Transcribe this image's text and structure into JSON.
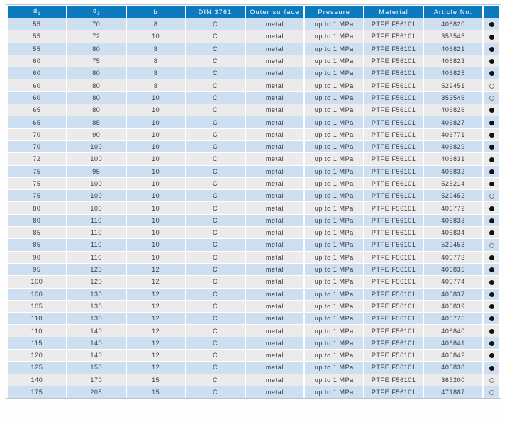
{
  "colors": {
    "header_bg": "#0c7abf",
    "header_text": "#ffffff",
    "row_blue": "#cddff0",
    "row_gray": "#ebebeb",
    "cell_text": "#3d3d3d",
    "dot_filled": "#121212",
    "dot_open_stroke": "#7d7d7d",
    "table_border": "#b5c6d2"
  },
  "table": {
    "columns": [
      {
        "id": "d1",
        "label": "d",
        "sub": "1"
      },
      {
        "id": "d2",
        "label": "d",
        "sub": "2"
      },
      {
        "id": "b",
        "label": "b"
      },
      {
        "id": "din",
        "label": "DIN 3761"
      },
      {
        "id": "outer_surface",
        "label": "Outer surface"
      },
      {
        "id": "pressure",
        "label": "Pressure"
      },
      {
        "id": "material",
        "label": "Material"
      },
      {
        "id": "article_no",
        "label": "Article No."
      },
      {
        "id": "availability",
        "label": ""
      }
    ],
    "rows": [
      [
        "55",
        "70",
        "8",
        "C",
        "metal",
        "up to 1 MPa",
        "PTFE F56101",
        "406820",
        "filled"
      ],
      [
        "55",
        "72",
        "10",
        "C",
        "metal",
        "up to 1 MPa",
        "PTFE F56101",
        "353545",
        "filled"
      ],
      [
        "55",
        "80",
        "8",
        "C",
        "metal",
        "up to 1 MPa",
        "PTFE F56101",
        "406821",
        "filled"
      ],
      [
        "60",
        "75",
        "8",
        "C",
        "metal",
        "up to 1 MPa",
        "PTFE F56101",
        "406823",
        "filled"
      ],
      [
        "60",
        "80",
        "8",
        "C",
        "metal",
        "up to 1 MPa",
        "PTFE F56101",
        "406825",
        "filled"
      ],
      [
        "60",
        "80",
        "8",
        "C",
        "metal",
        "up to 1 MPa",
        "PTFE F56101",
        "529451",
        "open"
      ],
      [
        "60",
        "80",
        "10",
        "C",
        "metal",
        "up to 1 MPa",
        "PTFE F56101",
        "353546",
        "open"
      ],
      [
        "65",
        "80",
        "10",
        "C",
        "metal",
        "up to 1 MPa",
        "PTFE F56101",
        "406826",
        "filled"
      ],
      [
        "65",
        "85",
        "10",
        "C",
        "metal",
        "up to 1 MPa",
        "PTFE F56101",
        "406827",
        "filled"
      ],
      [
        "70",
        "90",
        "10",
        "C",
        "metal",
        "up to 1 MPa",
        "PTFE F56101",
        "406771",
        "filled"
      ],
      [
        "70",
        "100",
        "10",
        "C",
        "metal",
        "up to 1 MPa",
        "PTFE F56101",
        "406829",
        "filled"
      ],
      [
        "72",
        "100",
        "10",
        "C",
        "metal",
        "up to 1 MPa",
        "PTFE F56101",
        "406831",
        "filled"
      ],
      [
        "75",
        "95",
        "10",
        "C",
        "metal",
        "up to 1 MPa",
        "PTFE F56101",
        "406832",
        "filled"
      ],
      [
        "75",
        "100",
        "10",
        "C",
        "metal",
        "up to 1 MPa",
        "PTFE F56101",
        "526214",
        "filled"
      ],
      [
        "75",
        "100",
        "10",
        "C",
        "metal",
        "up to 1 MPa",
        "PTFE F56101",
        "529452",
        "open"
      ],
      [
        "80",
        "100",
        "10",
        "C",
        "metal",
        "up to 1 MPa",
        "PTFE F56101",
        "406772",
        "filled"
      ],
      [
        "80",
        "110",
        "10",
        "C",
        "metal",
        "up to 1 MPa",
        "PTFE F56101",
        "406833",
        "filled"
      ],
      [
        "85",
        "110",
        "10",
        "C",
        "metal",
        "up to 1 MPa",
        "PTFE F56101",
        "406834",
        "filled"
      ],
      [
        "85",
        "110",
        "10",
        "C",
        "metal",
        "up to 1 MPa",
        "PTFE F56101",
        "529453",
        "open"
      ],
      [
        "90",
        "110",
        "10",
        "C",
        "metal",
        "up to 1 MPa",
        "PTFE F56101",
        "406773",
        "filled"
      ],
      [
        "95",
        "120",
        "12",
        "C",
        "metal",
        "up to 1 MPa",
        "PTFE F56101",
        "406835",
        "filled"
      ],
      [
        "100",
        "120",
        "12",
        "C",
        "metal",
        "up to 1 MPa",
        "PTFE F56101",
        "406774",
        "filled"
      ],
      [
        "100",
        "130",
        "12",
        "C",
        "metal",
        "up to 1 MPa",
        "PTFE F56101",
        "406837",
        "filled"
      ],
      [
        "105",
        "130",
        "12",
        "C",
        "metal",
        "up to 1 MPa",
        "PTFE F56101",
        "406839",
        "filled"
      ],
      [
        "110",
        "130",
        "12",
        "C",
        "metal",
        "up to 1 MPa",
        "PTFE F56101",
        "406775",
        "filled"
      ],
      [
        "110",
        "140",
        "12",
        "C",
        "metal",
        "up to 1 MPa",
        "PTFE F56101",
        "406840",
        "filled"
      ],
      [
        "115",
        "140",
        "12",
        "C",
        "metal",
        "up to 1 MPa",
        "PTFE F56101",
        "406841",
        "filled"
      ],
      [
        "120",
        "140",
        "12",
        "C",
        "metal",
        "up to 1 MPa",
        "PTFE F56101",
        "406842",
        "filled"
      ],
      [
        "125",
        "150",
        "12",
        "C",
        "metal",
        "up to 1 MPa",
        "PTFE F56101",
        "406838",
        "filled"
      ],
      [
        "140",
        "170",
        "15",
        "C",
        "metal",
        "up to 1 MPa",
        "PTFE F56101",
        "365200",
        "open"
      ],
      [
        "175",
        "205",
        "15",
        "C",
        "metal",
        "up to 1 MPa",
        "PTFE F56101",
        "471887",
        "open"
      ]
    ]
  }
}
